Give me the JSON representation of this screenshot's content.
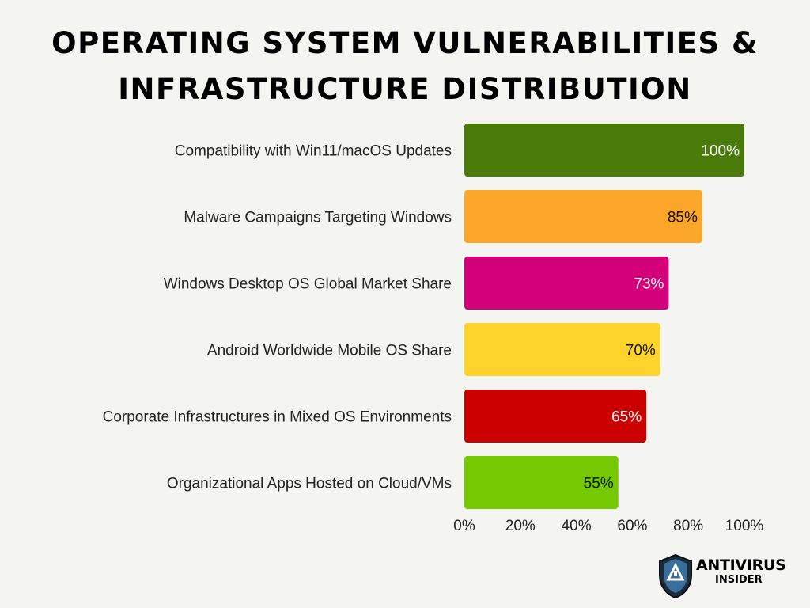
{
  "title": {
    "line1": "Operating System Vulnerabilities &",
    "line2": "Infrastructure Distribution"
  },
  "chart_data": {
    "type": "bar",
    "orientation": "horizontal",
    "categories": [
      "Compatibility with Win11/macOS Updates",
      "Malware Campaigns Targeting Windows",
      "Windows Desktop OS Global Market Share",
      "Android Worldwide Mobile OS Share",
      "Corporate Infrastructures in Mixed OS Environments",
      "Organizational Apps Hosted on Cloud/VMs"
    ],
    "values": [
      100,
      85,
      73,
      70,
      65,
      55
    ],
    "value_labels": [
      "100%",
      "85%",
      "73%",
      "70%",
      "65%",
      "55%"
    ],
    "colors": [
      "#4a7a0a",
      "#fba629",
      "#d4007a",
      "#fdd32b",
      "#cc0000",
      "#74c900"
    ],
    "value_label_colors": [
      "#ffffff",
      "#111111",
      "#ffffff",
      "#111111",
      "#ffffff",
      "#111111"
    ],
    "xlim": [
      0,
      100
    ],
    "x_ticks": [
      0,
      20,
      40,
      60,
      80,
      100
    ],
    "x_tick_labels": [
      "0%",
      "20%",
      "40%",
      "60%",
      "80%",
      "100%"
    ],
    "grid": false,
    "legend": "none"
  },
  "logo": {
    "brand": "ANTIVIRUS",
    "sub": "INSIDER",
    "shield_icon": "shield-icon"
  }
}
